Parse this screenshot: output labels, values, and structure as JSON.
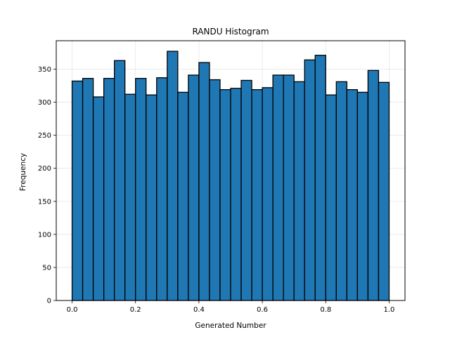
{
  "chart_data": {
    "type": "bar",
    "title": "RANDU Histogram",
    "xlabel": "Generated Number",
    "ylabel": "Frequency",
    "bin_range": [
      0.0,
      1.0
    ],
    "bins": 30,
    "values": [
      332,
      336,
      308,
      336,
      363,
      312,
      336,
      311,
      337,
      377,
      315,
      341,
      360,
      334,
      319,
      321,
      333,
      319,
      322,
      341,
      341,
      331,
      364,
      371,
      311,
      331,
      319,
      315,
      348,
      330
    ],
    "xlim": [
      -0.05,
      1.05
    ],
    "ylim": [
      0,
      393
    ],
    "xticks": [
      0.0,
      0.2,
      0.4,
      0.6,
      0.8,
      1.0
    ],
    "xtick_labels": [
      "0.0",
      "0.2",
      "0.4",
      "0.6",
      "0.8",
      "1.0"
    ],
    "yticks": [
      0,
      50,
      100,
      150,
      200,
      250,
      300,
      350
    ],
    "ytick_labels": [
      "0",
      "50",
      "100",
      "150",
      "200",
      "250",
      "300",
      "350"
    ],
    "grid": true,
    "colors": {
      "bar_fill": "#1f77b4",
      "bar_edge": "#000000",
      "grid": "#e6e6e6",
      "axis": "#000000"
    }
  }
}
